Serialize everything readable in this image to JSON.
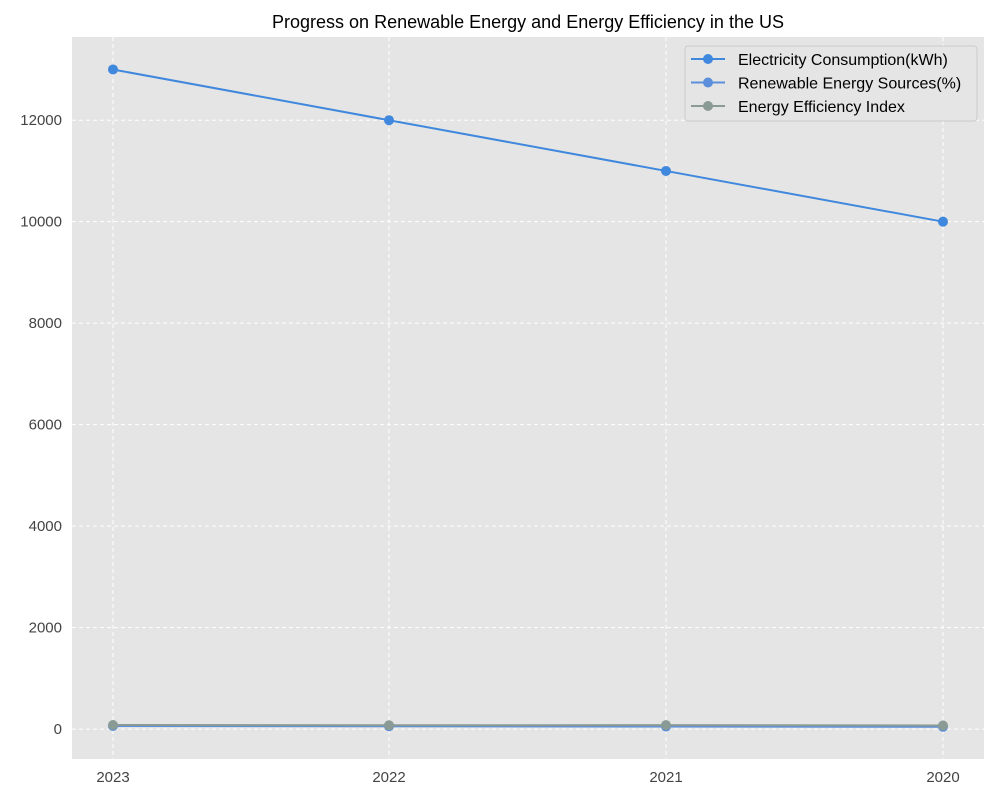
{
  "chart_data": {
    "type": "line",
    "title": "Progress on Renewable Energy and Energy Efficiency in the US",
    "xlabel": "",
    "ylabel": "",
    "categories": [
      "2023",
      "2022",
      "2021",
      "2020"
    ],
    "series": [
      {
        "name": "Electricity Consumption(kWh)",
        "values": [
          13000,
          12000,
          11000,
          10000
        ],
        "color": "#3f88dd"
      },
      {
        "name": "Renewable Energy Sources(%)",
        "values": [
          60,
          55,
          50,
          45
        ],
        "color": "#5b8fdc"
      },
      {
        "name": "Energy Efficiency Index",
        "values": [
          80,
          75,
          78,
          70
        ],
        "color": "#8a9a94"
      }
    ],
    "ylim": [
      -590,
      13640
    ],
    "yticks": [
      0,
      2000,
      4000,
      6000,
      8000,
      10000,
      12000
    ],
    "grid": true,
    "legend_position": "top-right",
    "background": "#e5e5e5"
  }
}
